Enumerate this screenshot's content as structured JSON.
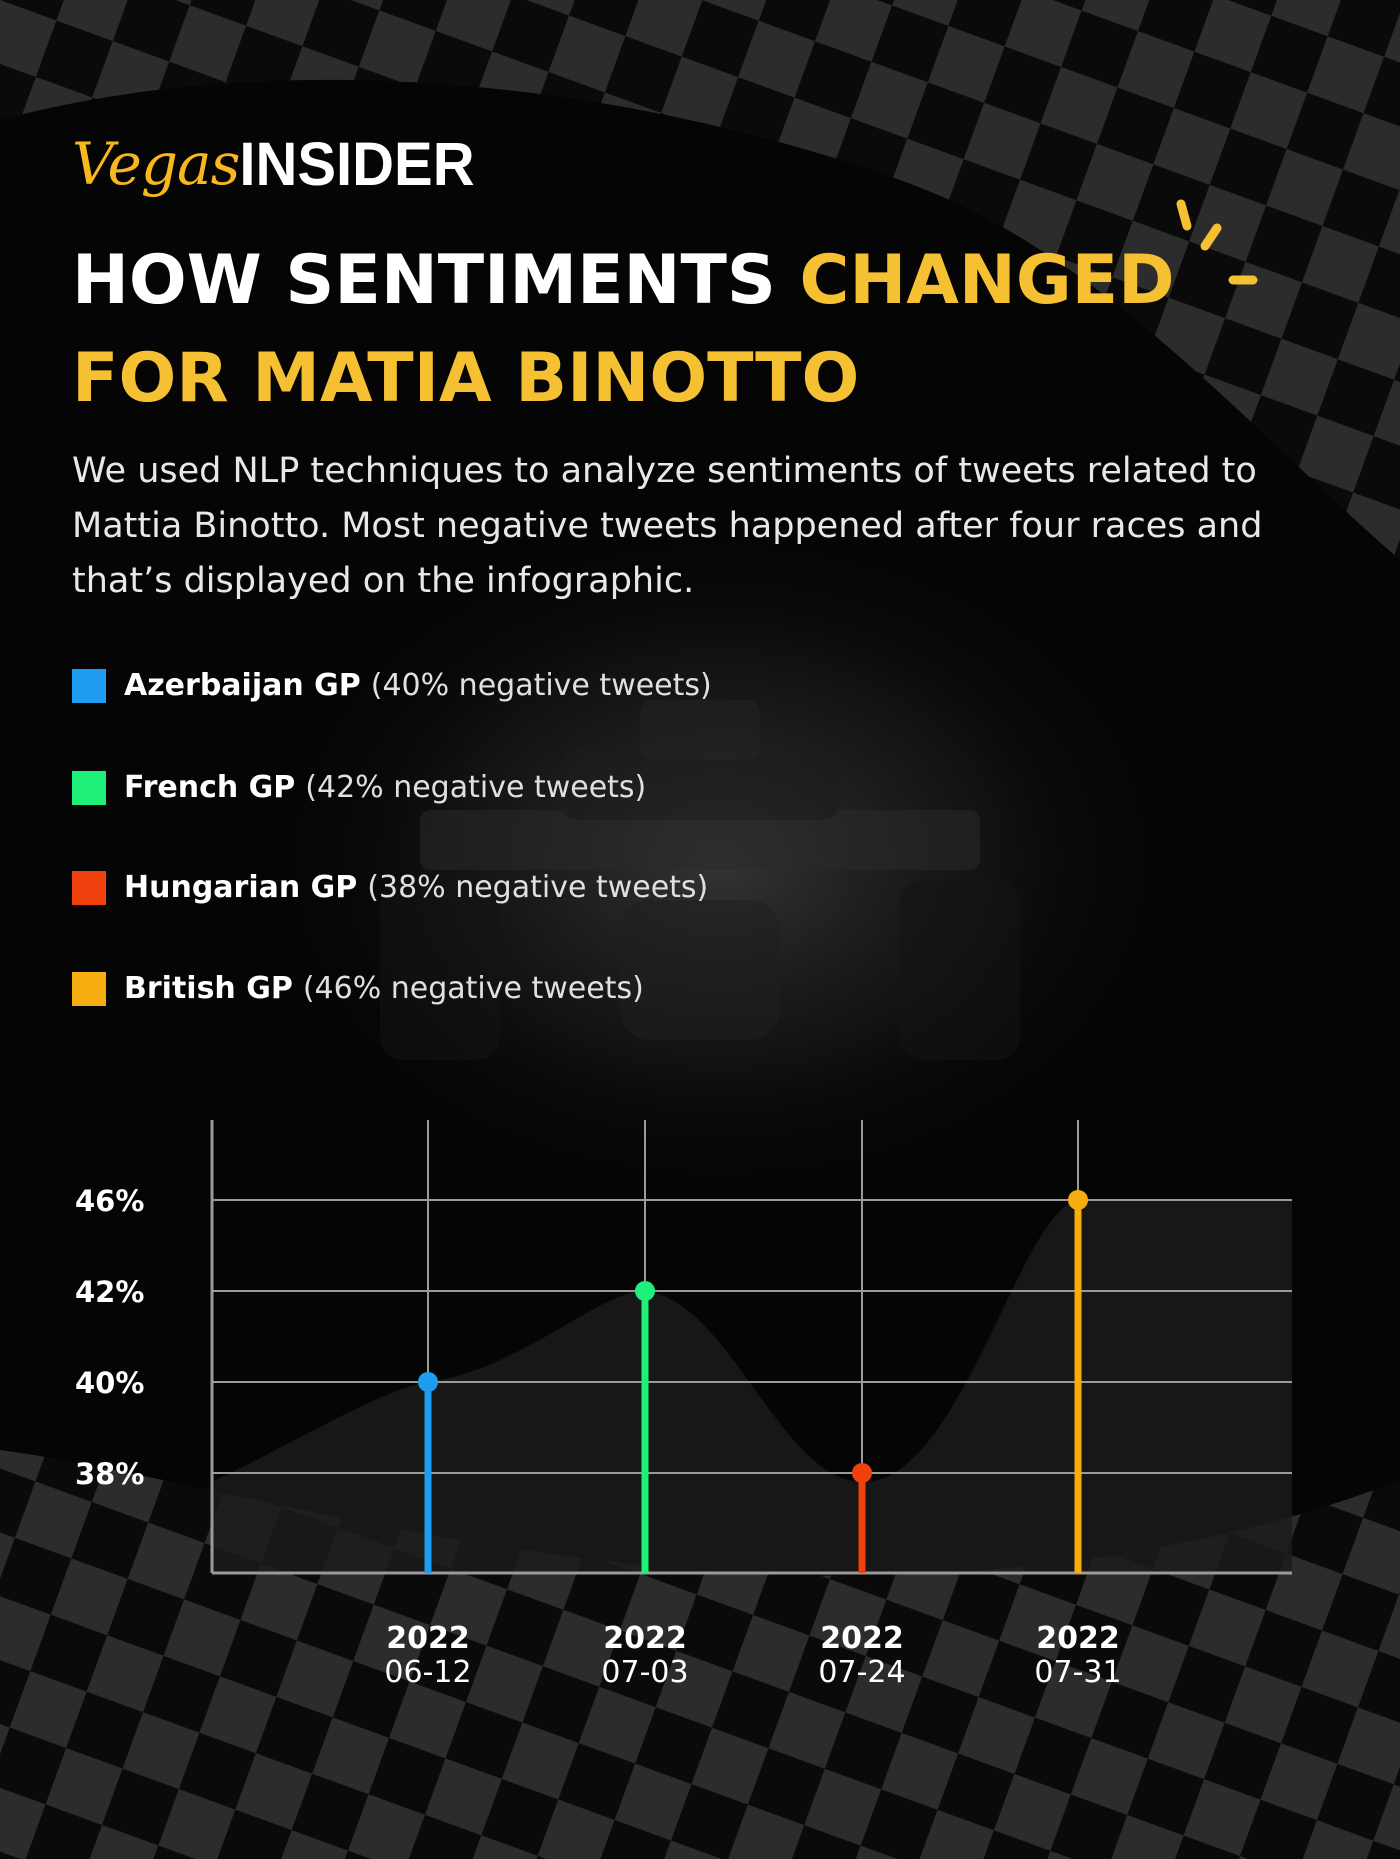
{
  "brand": {
    "logo_script": "Vegas",
    "logo_bold": "INSIDER"
  },
  "header": {
    "title_part1": "HOW SENTIMENTS ",
    "title_part2": "CHANGED",
    "title_line2": "FOR MATIA BINOTTO",
    "intro": "We used NLP techniques to analyze sentiments of tweets related to Mattia Binotto. Most negative tweets happened after four races and that’s displayed on the infographic."
  },
  "legend": [
    {
      "name": "Azerbaijan GP",
      "detail": "(40% negative tweets)",
      "color": "#1e9cf0"
    },
    {
      "name": "French GP",
      "detail": "(42% negative tweets)",
      "color": "#1ff07a"
    },
    {
      "name": "Hungarian GP",
      "detail": "(38% negative tweets)",
      "color": "#f0400e"
    },
    {
      "name": "British GP",
      "detail": "(46% negative tweets)",
      "color": "#f6ad10"
    }
  ],
  "colors": {
    "accent": "#f6c033",
    "background": "#050505"
  },
  "chart_data": {
    "type": "scatter",
    "style": "lollipop",
    "title": "",
    "xlabel": "",
    "ylabel": "",
    "y_ticks": [
      "38%",
      "40%",
      "42%",
      "46%"
    ],
    "grid": true,
    "points": [
      {
        "year": "2022",
        "date": "06-12",
        "value": 40,
        "series": "Azerbaijan GP",
        "color": "#1e9cf0"
      },
      {
        "year": "2022",
        "date": "07-03",
        "value": 42,
        "series": "French GP",
        "color": "#1ff07a"
      },
      {
        "year": "2022",
        "date": "07-24",
        "value": 38,
        "series": "Hungarian GP",
        "color": "#f0400e"
      },
      {
        "year": "2022",
        "date": "07-31",
        "value": 46,
        "series": "British GP",
        "color": "#f6ad10"
      }
    ]
  }
}
